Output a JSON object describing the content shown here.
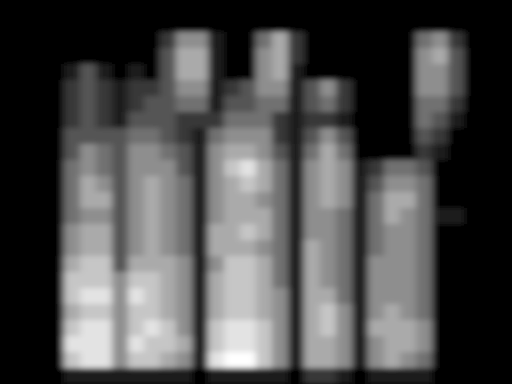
{
  "chart_data": {
    "type": "heatmap",
    "color": "#ffffff",
    "tick_labels": false,
    "cells": [
      [
        0,
        0,
        0,
        0,
        0,
        0,
        0,
        0,
        0,
        0,
        0,
        0,
        0,
        0,
        0,
        0,
        0,
        0,
        0,
        0,
        0,
        0,
        0,
        0,
        0,
        0,
        0,
        0,
        0,
        0,
        0,
        0
      ],
      [
        0,
        0,
        0,
        0,
        0,
        0,
        0,
        0,
        0,
        0,
        0,
        0,
        0,
        0,
        0,
        0,
        0,
        0,
        0,
        0,
        0,
        0,
        0,
        0,
        0,
        0,
        0,
        0,
        0,
        0,
        0,
        0
      ],
      [
        0,
        0,
        0,
        0,
        0,
        0,
        0,
        0,
        0,
        0,
        2,
        5,
        5,
        1,
        0,
        0,
        4,
        6,
        2,
        0,
        0,
        0,
        0,
        0,
        0,
        0,
        4,
        5,
        2,
        0,
        0,
        0
      ],
      [
        0,
        0,
        0,
        0,
        0,
        0,
        0,
        0,
        0,
        0,
        3,
        6,
        6,
        1,
        0,
        0,
        5,
        6,
        2,
        0,
        0,
        0,
        0,
        0,
        0,
        0,
        5,
        6,
        3,
        0,
        0,
        0
      ],
      [
        0,
        0,
        0,
        0,
        1,
        3,
        1,
        0,
        1,
        0,
        3,
        6,
        6,
        1,
        0,
        0,
        5,
        6,
        1,
        0,
        0,
        0,
        0,
        0,
        0,
        0,
        5,
        5,
        3,
        0,
        0,
        0
      ],
      [
        0,
        0,
        0,
        0,
        2,
        3,
        2,
        1,
        2,
        2,
        3,
        5,
        5,
        1,
        2,
        3,
        5,
        5,
        1,
        3,
        5,
        2,
        0,
        0,
        0,
        0,
        5,
        5,
        3,
        0,
        0,
        0
      ],
      [
        0,
        0,
        0,
        0,
        2,
        3,
        2,
        1,
        2,
        3,
        3,
        4,
        4,
        1,
        3,
        3,
        4,
        4,
        1,
        3,
        4,
        2,
        0,
        0,
        0,
        0,
        4,
        4,
        2,
        0,
        0,
        0
      ],
      [
        0,
        0,
        0,
        0,
        2,
        3,
        2,
        1,
        3,
        3,
        3,
        2,
        2,
        2,
        4,
        4,
        4,
        2,
        1,
        2,
        2,
        1,
        0,
        0,
        0,
        0,
        4,
        3,
        1,
        0,
        0,
        0
      ],
      [
        0,
        0,
        0,
        0,
        3,
        3,
        3,
        3,
        4,
        4,
        3,
        2,
        1,
        4,
        5,
        5,
        5,
        2,
        1,
        3,
        5,
        3,
        0,
        0,
        0,
        0,
        3,
        2,
        0,
        0,
        0,
        0
      ],
      [
        0,
        0,
        0,
        0,
        3,
        5,
        4,
        3,
        5,
        5,
        4,
        3,
        1,
        5,
        6,
        6,
        5,
        3,
        1,
        4,
        6,
        4,
        0,
        0,
        0,
        0,
        2,
        1,
        0,
        0,
        0,
        0
      ],
      [
        0,
        0,
        0,
        0,
        4,
        5,
        4,
        3,
        5,
        5,
        5,
        3,
        1,
        5,
        7,
        8,
        6,
        4,
        1,
        5,
        6,
        5,
        1,
        2,
        4,
        4,
        3,
        0,
        0,
        0,
        0,
        0
      ],
      [
        0,
        0,
        0,
        0,
        4,
        6,
        5,
        3,
        5,
        6,
        5,
        4,
        1,
        5,
        6,
        7,
        6,
        4,
        1,
        5,
        6,
        5,
        1,
        3,
        5,
        5,
        4,
        0,
        0,
        0,
        0,
        0
      ],
      [
        0,
        0,
        0,
        0,
        4,
        6,
        6,
        3,
        5,
        6,
        5,
        4,
        1,
        5,
        6,
        6,
        5,
        4,
        1,
        5,
        6,
        5,
        1,
        4,
        6,
        6,
        4,
        0,
        0,
        0,
        0,
        0
      ],
      [
        0,
        0,
        0,
        0,
        4,
        5,
        5,
        3,
        5,
        6,
        5,
        4,
        1,
        5,
        6,
        6,
        6,
        4,
        1,
        5,
        5,
        4,
        1,
        4,
        6,
        5,
        4,
        1,
        1,
        0,
        0,
        0
      ],
      [
        0,
        0,
        0,
        0,
        5,
        6,
        6,
        3,
        5,
        6,
        5,
        4,
        1,
        6,
        6,
        7,
        6,
        4,
        1,
        5,
        5,
        4,
        1,
        4,
        5,
        5,
        4,
        0,
        0,
        0,
        0,
        0
      ],
      [
        0,
        0,
        0,
        0,
        5,
        6,
        6,
        3,
        5,
        6,
        5,
        4,
        1,
        6,
        6,
        6,
        5,
        4,
        1,
        6,
        5,
        4,
        1,
        4,
        5,
        5,
        4,
        0,
        0,
        0,
        0,
        0
      ],
      [
        0,
        0,
        0,
        0,
        6,
        7,
        7,
        3,
        6,
        6,
        6,
        5,
        1,
        5,
        7,
        7,
        6,
        4,
        1,
        6,
        5,
        4,
        1,
        5,
        5,
        5,
        4,
        0,
        0,
        0,
        0,
        0
      ],
      [
        0,
        0,
        0,
        0,
        7,
        7,
        7,
        5,
        7,
        7,
        6,
        5,
        1,
        6,
        7,
        7,
        6,
        4,
        1,
        6,
        5,
        4,
        1,
        5,
        5,
        5,
        4,
        0,
        0,
        0,
        0,
        0
      ],
      [
        0,
        0,
        0,
        0,
        7,
        8,
        8,
        5,
        8,
        7,
        6,
        5,
        1,
        6,
        7,
        7,
        6,
        5,
        1,
        6,
        6,
        4,
        1,
        5,
        5,
        5,
        4,
        0,
        0,
        0,
        0,
        0
      ],
      [
        0,
        0,
        0,
        0,
        6,
        7,
        7,
        5,
        7,
        7,
        6,
        5,
        1,
        6,
        7,
        7,
        6,
        5,
        1,
        6,
        7,
        5,
        1,
        5,
        6,
        5,
        4,
        0,
        0,
        0,
        0,
        0
      ],
      [
        0,
        0,
        0,
        0,
        7,
        8,
        8,
        5,
        7,
        8,
        7,
        5,
        1,
        7,
        8,
        8,
        7,
        5,
        1,
        6,
        7,
        5,
        1,
        6,
        6,
        6,
        5,
        0,
        0,
        0,
        0,
        0
      ],
      [
        0,
        0,
        0,
        0,
        8,
        8,
        8,
        5,
        8,
        7,
        7,
        6,
        1,
        7,
        8,
        8,
        7,
        5,
        1,
        6,
        6,
        5,
        1,
        5,
        6,
        6,
        5,
        0,
        0,
        0,
        0,
        0
      ],
      [
        0,
        0,
        0,
        0,
        7,
        8,
        8,
        5,
        7,
        7,
        6,
        5,
        1,
        8,
        9,
        9,
        7,
        5,
        1,
        6,
        6,
        5,
        1,
        5,
        6,
        5,
        4,
        0,
        0,
        0,
        0,
        0
      ],
      [
        0,
        0,
        0,
        0,
        1,
        1,
        1,
        1,
        1,
        1,
        1,
        1,
        0,
        1,
        1,
        1,
        1,
        1,
        0,
        2,
        2,
        1,
        0,
        1,
        1,
        1,
        1,
        0,
        0,
        0,
        0,
        0
      ]
    ]
  }
}
